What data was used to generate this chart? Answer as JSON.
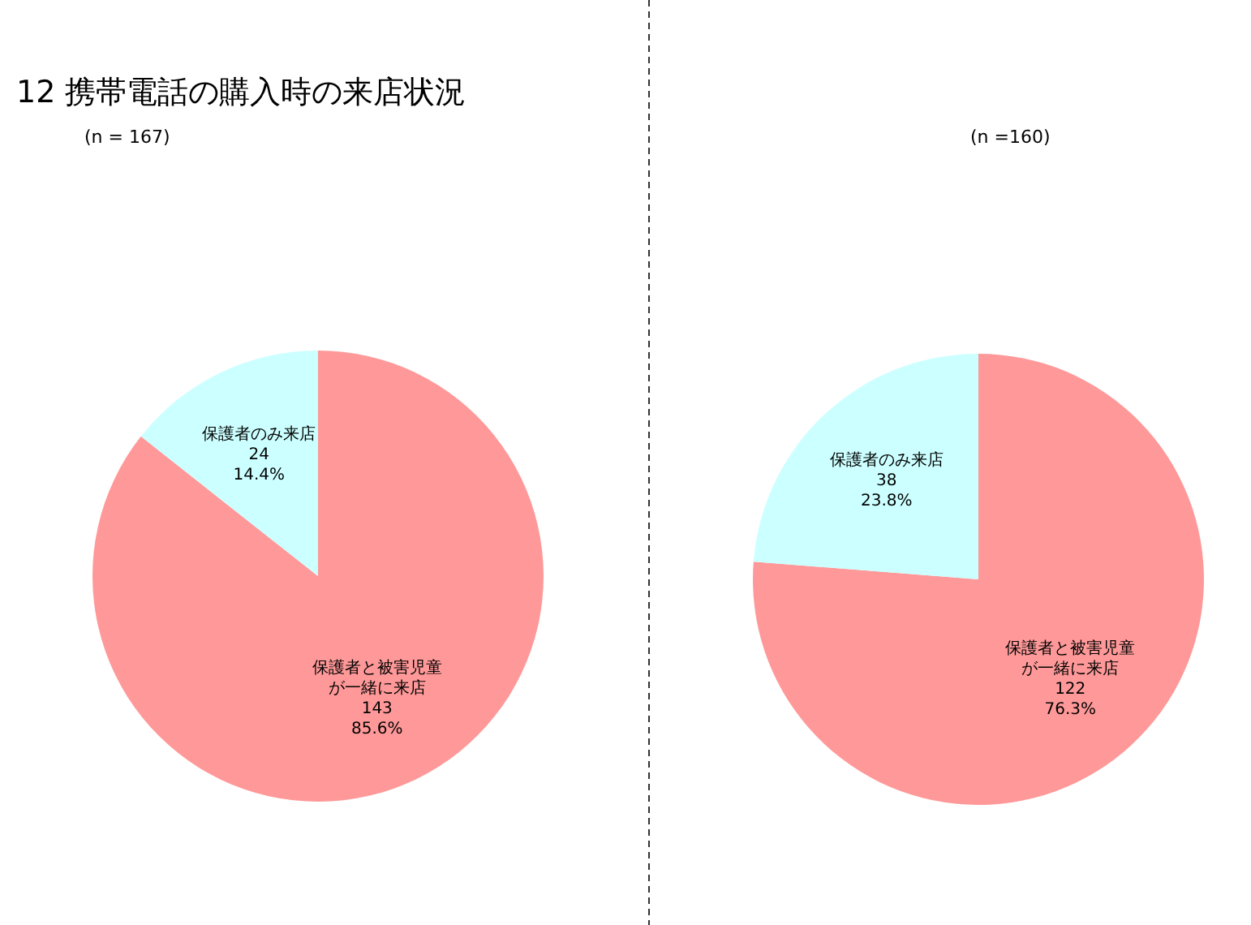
{
  "chart_data": [
    {
      "type": "pie",
      "title": "12 携帯電話の購入時の来店状況",
      "subtitle": "(n = 167)",
      "categories": [
        "保護者と被害児童が一緒に来店",
        "保護者のみ来店"
      ],
      "values": [
        143,
        24
      ],
      "colors": [
        "#ff9999",
        "#ccffff"
      ],
      "value_labels": [
        "143\n85.6%",
        "24\n14.4%"
      ]
    },
    {
      "type": "pie",
      "subtitle": "(n =160)",
      "categories": [
        "保護者と被害児童が一緒に来店",
        "保護者のみ来店"
      ],
      "values": [
        122,
        38
      ],
      "colors": [
        "#ff9999",
        "#ccffff"
      ],
      "value_labels": [
        "122\n76.3%",
        "38\n23.8%"
      ]
    }
  ]
}
